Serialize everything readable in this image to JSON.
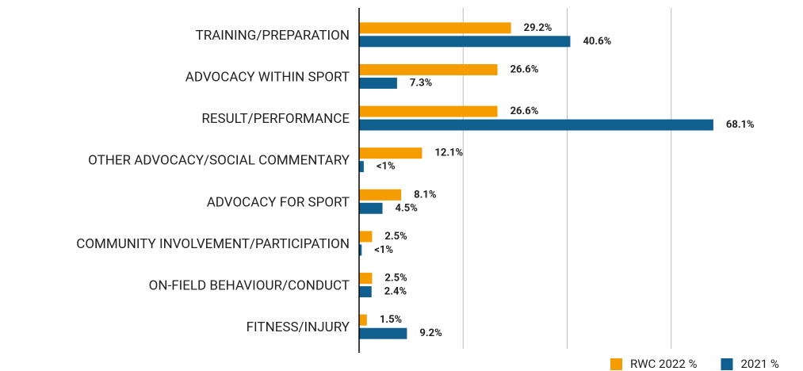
{
  "chart_data": {
    "type": "hbar",
    "categories": [
      "TRAINING/PREPARATION",
      "ADVOCACY WITHIN SPORT",
      "RESULT/PERFORMANCE",
      "OTHER ADVOCACY/SOCIAL COMMENTARY",
      "ADVOCACY FOR SPORT",
      "COMMUNITY INVOLVEMENT/PARTICIPATION",
      "ON-FIELD BEHAVIOUR/CONDUCT",
      "FITNESS/INJURY"
    ],
    "series": [
      {
        "name": "RWC 2022 %",
        "color": "#f59c00",
        "values": [
          29.2,
          26.6,
          26.6,
          12.1,
          8.1,
          2.5,
          2.5,
          1.5
        ],
        "value_labels": [
          "29.2%",
          "26.6%",
          "26.6%",
          "12.1%",
          "8.1%",
          "2.5%",
          "2.5%",
          "1.5%"
        ]
      },
      {
        "name": "2021 %",
        "color": "#10608f",
        "values": [
          40.6,
          7.3,
          68.1,
          0.9,
          4.5,
          0.5,
          2.4,
          9.2
        ],
        "value_labels": [
          "40.6%",
          "7.3%",
          "68.1%",
          "<1%",
          "4.5%",
          "<1%",
          "2.4%",
          "9.2%"
        ]
      }
    ],
    "xlim": [
      0,
      80
    ],
    "xticks": [
      0,
      20,
      40,
      60
    ],
    "grid": true,
    "legend": "bottom-right"
  }
}
